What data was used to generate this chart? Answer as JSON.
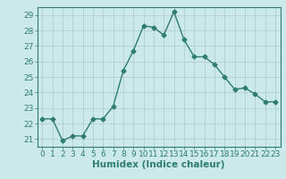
{
  "x": [
    0,
    1,
    2,
    3,
    4,
    5,
    6,
    7,
    8,
    9,
    10,
    11,
    12,
    13,
    14,
    15,
    16,
    17,
    18,
    19,
    20,
    21,
    22,
    23
  ],
  "y": [
    22.3,
    22.3,
    20.9,
    21.2,
    21.2,
    22.3,
    22.3,
    23.1,
    25.4,
    26.7,
    28.3,
    28.2,
    27.7,
    29.2,
    27.4,
    26.3,
    26.3,
    25.8,
    25.0,
    24.2,
    24.3,
    23.9,
    23.4,
    23.4
  ],
  "line_color": "#2e7d6e",
  "marker": "D",
  "markersize": 2.5,
  "linewidth": 1.0,
  "bg_color": "#cce9e9",
  "grid_color": "#b0c8c8",
  "xlabel": "Humidex (Indice chaleur)",
  "xlim": [
    -0.5,
    23.5
  ],
  "ylim": [
    20.5,
    29.5
  ],
  "yticks": [
    21,
    22,
    23,
    24,
    25,
    26,
    27,
    28,
    29
  ],
  "xticks": [
    0,
    1,
    2,
    3,
    4,
    5,
    6,
    7,
    8,
    9,
    10,
    11,
    12,
    13,
    14,
    15,
    16,
    17,
    18,
    19,
    20,
    21,
    22,
    23
  ],
  "xlabel_fontsize": 7.5,
  "tick_fontsize": 6.5,
  "tick_color": "#2e7d6e",
  "spine_color": "#2e7d6e"
}
